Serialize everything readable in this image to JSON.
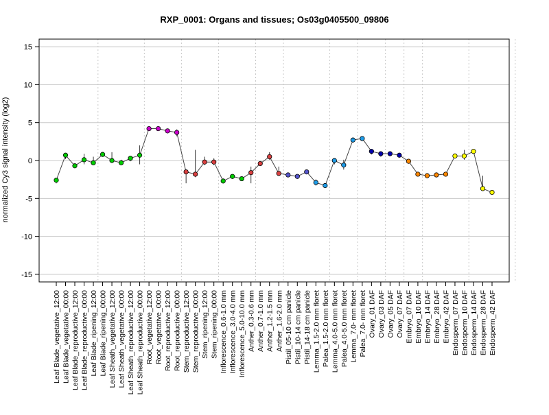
{
  "chart_data": {
    "type": "line",
    "title": "RXP_0001: Organs and tissues; Os03g0405500_09806",
    "xlabel": "",
    "ylabel": "normalized Cy3 signal intensity (log2)",
    "ylim": [
      -16,
      16
    ],
    "yticks": [
      -15,
      -10,
      -5,
      0,
      5,
      10,
      15
    ],
    "grid": "horizontal at y-ticks; vertical dotted group separators",
    "group_boundaries_after_index": [
      4,
      9,
      13,
      17,
      21,
      24,
      29,
      32,
      35,
      37,
      39,
      44,
      49
    ],
    "categories": [
      "Leaf Blade_vegetative_12:00",
      "Leaf Blade_vegetative_00:00",
      "Leaf Blade_reproductive_12:00",
      "Leaf Blade_reproductive_00:00",
      "Leaf Blade_ripening_12:00",
      "Leaf Blade_ripening_00:00",
      "Leaf Sheath_vegetative_12:00",
      "Leaf Sheath_vegetative_00:00",
      "Leaf Sheath_reproductive_12:00",
      "Leaf Sheath_reproductive_00:00",
      "Root_vegetative_12:00",
      "Root_vegetative_00:00",
      "Root_reproductive_12:00",
      "Root_reproductive_00:00",
      "Stem_reproductive_12:00",
      "Stem_reproductive_00:00",
      "Stem_ripening_12:00",
      "Stem_ripening_00:00",
      "Inflorescence_0.6-1.0 mm",
      "Inflorescence_3.0-4.0 mm",
      "Inflorescence_5.0-10.0 mm",
      "Anther_0.3-0.6 mm",
      "Anther_0.7-1.0 mm",
      "Anther_1.2-1.5 mm",
      "Anther_1.6-2.0 mm",
      "Pistil_05-10 cm panicle",
      "Pistil_10-14 cm panicle",
      "Pistil_14-18 cm panicle",
      "Lemma_1.5-2.0 mm floret",
      "Palea_1.5-2.0 mm floret",
      "Lemma_4.0-5.0 mm floret",
      "Palea_4.0-5.0 mm floret",
      "Lemma_7.0- mm floret",
      "Palea_7.0- mm floret",
      "Ovary_01 DAF",
      "Ovary_03 DAF",
      "Ovary_05 DAF",
      "Ovary_07 DAF",
      "Embryo_07 DAF",
      "Embryo_10 DAF",
      "Embryo_14 DAF",
      "Embryo_28 DAF",
      "Embryo_42 DAF",
      "Endosperm_07 DAF",
      "Endosperm_10 DAF",
      "Endosperm_14 DAF",
      "Endosperm_28 DAF",
      "Endosperm_42 DAF"
    ],
    "values": [
      -2.6,
      0.7,
      -0.7,
      0.1,
      -0.3,
      0.8,
      0.0,
      -0.3,
      0.3,
      0.7,
      4.2,
      4.2,
      3.9,
      3.7,
      -1.5,
      -1.8,
      -0.2,
      -0.2,
      -2.7,
      -2.1,
      -2.4,
      -1.6,
      -0.4,
      0.5,
      -1.7,
      -1.9,
      -2.1,
      -1.5,
      -2.9,
      -3.3,
      0.0,
      -0.6,
      2.7,
      2.9,
      1.2,
      0.9,
      0.9,
      0.7,
      -0.1,
      -1.8,
      -2.0,
      -1.9,
      -1.8,
      0.6,
      0.6,
      1.2,
      -3.7,
      -4.2
    ],
    "error_low": [
      -3.0,
      0.2,
      -1.0,
      -0.5,
      -0.6,
      0.5,
      -0.2,
      -0.6,
      -0.1,
      -0.5,
      4.0,
      4.0,
      3.7,
      3.2,
      -3.0,
      -2.2,
      -0.6,
      -0.6,
      -2.9,
      -2.3,
      -2.7,
      -3.0,
      -0.6,
      0.1,
      -2.0,
      -2.1,
      -2.4,
      -1.8,
      -3.3,
      -3.6,
      -0.5,
      -1.2,
      2.4,
      2.7,
      0.8,
      0.5,
      0.6,
      0.5,
      -0.3,
      -2.0,
      -2.2,
      -2.2,
      -2.0,
      0.4,
      0.1,
      0.9,
      -4.0,
      -4.5
    ],
    "error_high": [
      -2.3,
      1.0,
      -0.4,
      0.9,
      0.5,
      1.1,
      1.1,
      0.1,
      0.6,
      2.0,
      4.4,
      4.4,
      4.1,
      4.1,
      -1.2,
      1.4,
      0.5,
      0.3,
      -2.5,
      -1.9,
      -2.2,
      -0.8,
      -0.2,
      1.1,
      -0.8,
      -1.7,
      -1.9,
      -1.3,
      -2.5,
      -3.0,
      0.3,
      0.1,
      3.0,
      3.1,
      1.5,
      1.2,
      1.1,
      0.9,
      0.1,
      -1.6,
      -1.8,
      -1.7,
      -1.6,
      0.8,
      1.4,
      1.5,
      -2.0,
      -3.9
    ],
    "point_colors": [
      "#00cc00",
      "#00cc00",
      "#00cc00",
      "#00cc00",
      "#00cc00",
      "#00cc00",
      "#00cc00",
      "#00cc00",
      "#00cc00",
      "#00cc00",
      "#cc00cc",
      "#cc00cc",
      "#cc00cc",
      "#cc00cc",
      "#d94040",
      "#d94040",
      "#d94040",
      "#d94040",
      "#00cc00",
      "#00cc00",
      "#00cc00",
      "#d94040",
      "#d94040",
      "#d94040",
      "#d94040",
      "#5555cc",
      "#5555cc",
      "#5555cc",
      "#1e9be6",
      "#1e9be6",
      "#1e9be6",
      "#1e9be6",
      "#1e9be6",
      "#1e9be6",
      "#0000aa",
      "#0000aa",
      "#0000aa",
      "#0000aa",
      "#ff8800",
      "#ff8800",
      "#ff8800",
      "#ff8800",
      "#ff8800",
      "#ffff00",
      "#ffff00",
      "#ffff00",
      "#ffff00",
      "#ffff00"
    ],
    "line_color": "#444444"
  }
}
